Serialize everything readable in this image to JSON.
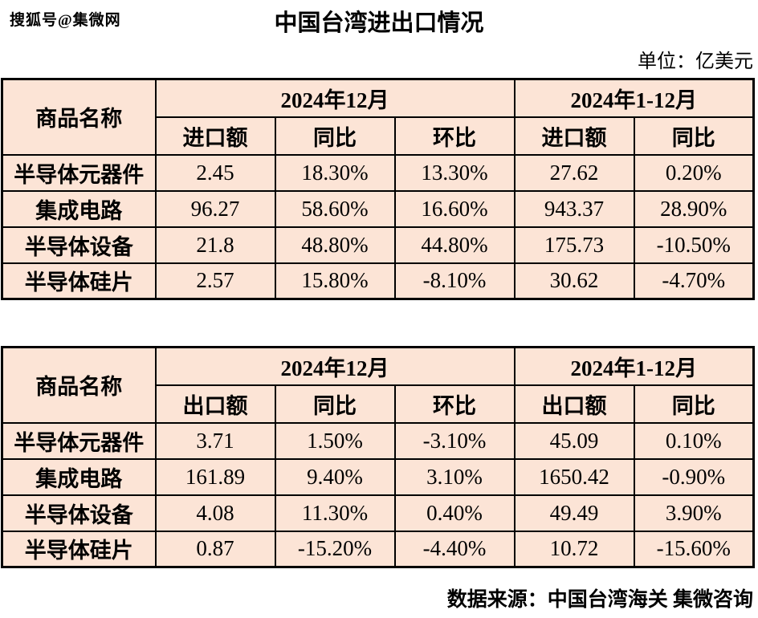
{
  "watermark": "搜狐号@集微网",
  "title": "中国台湾进出口情况",
  "unit_label": "单位：亿美元",
  "footer": "数据来源：中国台湾海关 集微咨询",
  "colors": {
    "cell_bg": "#fce4d6",
    "border": "#000000",
    "text": "#000000",
    "page_bg": "#ffffff"
  },
  "tables": [
    {
      "name_header": "商品名称",
      "period1": "2024年12月",
      "period2": "2024年1-12月",
      "sub_headers": [
        "进口额",
        "同比",
        "环比",
        "进口额",
        "同比"
      ],
      "rows": [
        {
          "name": "半导体元器件",
          "values": [
            "2.45",
            "18.30%",
            "13.30%",
            "27.62",
            "0.20%"
          ]
        },
        {
          "name": "集成电路",
          "values": [
            "96.27",
            "58.60%",
            "16.60%",
            "943.37",
            "28.90%"
          ]
        },
        {
          "name": "半导体设备",
          "values": [
            "21.8",
            "48.80%",
            "44.80%",
            "175.73",
            "-10.50%"
          ]
        },
        {
          "name": "半导体硅片",
          "values": [
            "2.57",
            "15.80%",
            "-8.10%",
            "30.62",
            "-4.70%"
          ]
        }
      ]
    },
    {
      "name_header": "商品名称",
      "period1": "2024年12月",
      "period2": "2024年1-12月",
      "sub_headers": [
        "出口额",
        "同比",
        "环比",
        "出口额",
        "同比"
      ],
      "rows": [
        {
          "name": "半导体元器件",
          "values": [
            "3.71",
            "1.50%",
            "-3.10%",
            "45.09",
            "0.10%"
          ]
        },
        {
          "name": "集成电路",
          "values": [
            "161.89",
            "9.40%",
            "3.10%",
            "1650.42",
            "-0.90%"
          ]
        },
        {
          "name": "半导体设备",
          "values": [
            "4.08",
            "11.30%",
            "0.40%",
            "49.49",
            "3.90%"
          ]
        },
        {
          "name": "半导体硅片",
          "values": [
            "0.87",
            "-15.20%",
            "-4.40%",
            "10.72",
            "-15.60%"
          ]
        }
      ]
    }
  ],
  "chart_data": [
    {
      "type": "table",
      "title": "中国台湾进出口情况（进口）",
      "unit": "亿美元",
      "columns": [
        "商品名称",
        "2024年12月 进口额",
        "2024年12月 同比",
        "2024年12月 环比",
        "2024年1-12月 进口额",
        "2024年1-12月 同比"
      ],
      "rows": [
        [
          "半导体元器件",
          2.45,
          "18.30%",
          "13.30%",
          27.62,
          "0.20%"
        ],
        [
          "集成电路",
          96.27,
          "58.60%",
          "16.60%",
          943.37,
          "28.90%"
        ],
        [
          "半导体设备",
          21.8,
          "48.80%",
          "44.80%",
          175.73,
          "-10.50%"
        ],
        [
          "半导体硅片",
          2.57,
          "15.80%",
          "-8.10%",
          30.62,
          "-4.70%"
        ]
      ]
    },
    {
      "type": "table",
      "title": "中国台湾进出口情况（出口）",
      "unit": "亿美元",
      "columns": [
        "商品名称",
        "2024年12月 出口额",
        "2024年12月 同比",
        "2024年12月 环比",
        "2024年1-12月 出口额",
        "2024年1-12月 同比"
      ],
      "rows": [
        [
          "半导体元器件",
          3.71,
          "1.50%",
          "-3.10%",
          45.09,
          "0.10%"
        ],
        [
          "集成电路",
          161.89,
          "9.40%",
          "3.10%",
          1650.42,
          "-0.90%"
        ],
        [
          "半导体设备",
          4.08,
          "11.30%",
          "0.40%",
          49.49,
          "3.90%"
        ],
        [
          "半导体硅片",
          0.87,
          "-15.20%",
          "-4.40%",
          10.72,
          "-15.60%"
        ]
      ]
    }
  ]
}
